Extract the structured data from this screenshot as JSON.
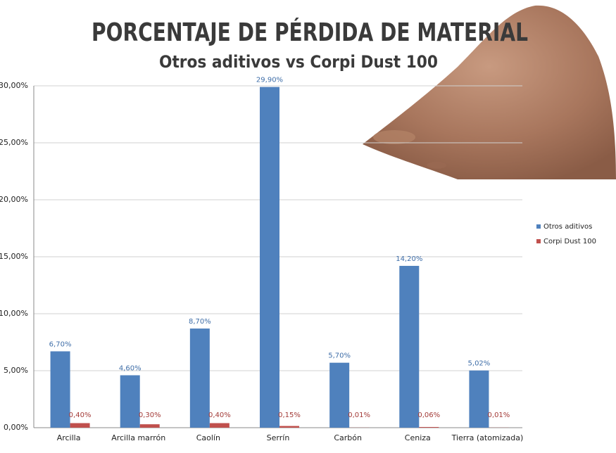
{
  "chart_data": {
    "type": "bar",
    "title": "PORCENTAJE DE PÉRDIDA DE MATERIAL",
    "subtitle": "Otros aditivos vs Corpi Dust 100",
    "categories": [
      "Arcilla",
      "Arcilla marrón",
      "Caolín",
      "Serrín",
      "Carbón",
      "Ceniza",
      "Tierra (atomizada)"
    ],
    "series": [
      {
        "name": "Otros aditivos",
        "color": "#4f81bd",
        "values": [
          6.7,
          4.6,
          8.7,
          29.9,
          5.7,
          14.2,
          5.02
        ],
        "value_labels": [
          "6,70%",
          "4,60%",
          "8,70%",
          "29,90%",
          "5,70%",
          "14,20%",
          "5,02%"
        ]
      },
      {
        "name": "Corpi Dust 100",
        "color": "#c0504d",
        "values": [
          0.4,
          0.3,
          0.4,
          0.15,
          0.01,
          0.06,
          0.01
        ],
        "value_labels": [
          "0,40%",
          "0,30%",
          "0,40%",
          "0,15%",
          "0,01%",
          "0,06%",
          "0,01%"
        ]
      }
    ],
    "ylim": [
      0,
      30
    ],
    "yticks": [
      {
        "value": 0,
        "label": "0,00%"
      },
      {
        "value": 5,
        "label": "5,00%"
      },
      {
        "value": 10,
        "label": "10,00%"
      },
      {
        "value": 15,
        "label": "15,00%"
      },
      {
        "value": 20,
        "label": "20,00%"
      },
      {
        "value": 25,
        "label": "25,00%"
      },
      {
        "value": 30,
        "label": "30,00%"
      }
    ],
    "grid": true,
    "legend": "right"
  }
}
